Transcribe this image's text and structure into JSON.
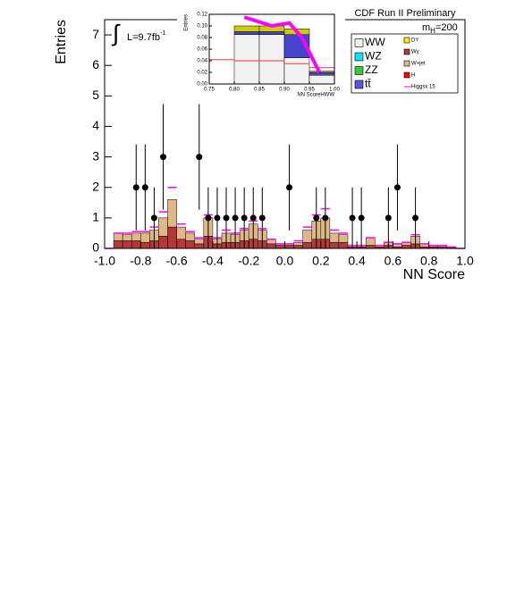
{
  "chart_data": [
    {
      "type": "stacked-histogram",
      "title": "CDF Run II Preliminary",
      "mass_label": {
        "symbol": "m",
        "subscript": "H",
        "value": "=200"
      },
      "luminosity": {
        "integral": "∫",
        "text": "L=9.7fb",
        "superscript": "-1"
      },
      "x_label": "NN Score",
      "y_label": "Entries",
      "bins": [
        -1.0,
        -0.95,
        -0.9,
        -0.85,
        -0.8,
        -0.75,
        -0.7,
        -0.65,
        -0.6,
        -0.55,
        -0.5,
        -0.45,
        -0.4,
        -0.35,
        -0.3,
        -0.25,
        -0.2,
        -0.15,
        -0.1,
        -0.05,
        0.0,
        0.05,
        0.1,
        0.15,
        0.2,
        0.25,
        0.3,
        0.35,
        0.4,
        0.45,
        0.5,
        0.55,
        0.6,
        0.65,
        0.7,
        0.75,
        0.8,
        0.85,
        0.9,
        0.95,
        1.0
      ],
      "series": [
        {
          "name": "Wγ",
          "color": "#b03a3a",
          "values": [
            0,
            0.25,
            0.25,
            0.25,
            0.2,
            0.25,
            0.4,
            0.7,
            0.3,
            0.25,
            0.15,
            0.4,
            0.15,
            0.2,
            0.2,
            0.25,
            0.3,
            0.25,
            0.15,
            0.1,
            0.1,
            0.1,
            0.2,
            0.3,
            0.3,
            0.2,
            0.2,
            0.05,
            0.05,
            0.1,
            0.05,
            0.1,
            0.05,
            0.1,
            0.15,
            0.05,
            0.05,
            0.05,
            0.03,
            0
          ]
        },
        {
          "name": "W+jet",
          "color": "#deb887",
          "values": [
            0,
            0.25,
            0.2,
            0.25,
            0.3,
            0.35,
            0.6,
            0.9,
            0.4,
            0.25,
            0.15,
            0.6,
            0.15,
            0.3,
            0.25,
            0.35,
            0.5,
            0.35,
            0.15,
            0.05,
            0.05,
            0.1,
            0.4,
            0.6,
            0.7,
            0.3,
            0.25,
            0.05,
            0.05,
            0.25,
            0.05,
            0.1,
            0.1,
            0.1,
            0.25,
            0.1,
            0.05,
            0.05,
            0.02,
            0
          ]
        }
      ],
      "signal": {
        "name": "Higgsx 15",
        "color": "#ff00ff",
        "values": [
          0,
          0.5,
          0.5,
          0.55,
          0.55,
          0.7,
          1.2,
          2.0,
          0.8,
          0.55,
          0.35,
          1.1,
          0.35,
          0.6,
          0.5,
          0.65,
          0.9,
          0.65,
          0.3,
          0.15,
          0.15,
          0.25,
          0.7,
          1.1,
          1.3,
          0.6,
          0.5,
          0.1,
          0.1,
          0.35,
          0.1,
          0.2,
          0.15,
          0.2,
          0.45,
          0.15,
          0.1,
          0.1,
          0.05,
          0
        ]
      },
      "points": {
        "x": [
          -0.825,
          -0.775,
          -0.725,
          -0.675,
          -0.475,
          -0.425,
          -0.375,
          -0.325,
          -0.275,
          -0.225,
          -0.175,
          -0.125,
          0.025,
          0.175,
          0.225,
          0.375,
          0.425,
          0.575,
          0.625,
          0.725
        ],
        "values": [
          2,
          2,
          1,
          3,
          3,
          1,
          1,
          1,
          1,
          1,
          1,
          1,
          2,
          1,
          1,
          1,
          1,
          1,
          2,
          1
        ],
        "errors": [
          1.41,
          1.41,
          1,
          1.73,
          1.73,
          1,
          1,
          1,
          1,
          1,
          1,
          1,
          1.41,
          1,
          1,
          1,
          1,
          1,
          1.41,
          1
        ]
      },
      "legend": [
        {
          "name": "WW",
          "color": "#f2f2f2"
        },
        {
          "name": "WZ",
          "color": "#00e5ee"
        },
        {
          "name": "ZZ",
          "color": "#33cc33"
        },
        {
          "name": "tt̄",
          "color": "#5555dd"
        },
        {
          "name": "DY",
          "color": "#ffee00"
        },
        {
          "name": "H",
          "color": "#ff0000"
        }
      ],
      "xlim": [
        -1.0,
        1.0
      ],
      "ylim": [
        0,
        7.5
      ],
      "xticks": [
        {
          "value": -1.0,
          "label": "-1.0"
        },
        -0.8,
        -0.6,
        -0.4,
        -0.2,
        {
          "value": 0,
          "label": "0.0"
        },
        0.2,
        0.4,
        0.6,
        0.8,
        {
          "value": 1,
          "label": "1.0"
        }
      ],
      "yticks": [
        0,
        1,
        2,
        3,
        4,
        5,
        6,
        7
      ]
    },
    {
      "type": "stacked-histogram",
      "x_label": "NN ScoreHWW",
      "y_label": "Entries",
      "bins": [
        0.75,
        0.8,
        0.85,
        0.9,
        0.95,
        1.0
      ],
      "series": [
        {
          "color": "#f2f2f2",
          "values": [
            0,
            0.085,
            0.085,
            0.045,
            0.015
          ]
        },
        {
          "color": "#4444cc",
          "values": [
            0,
            0.005,
            0.005,
            0.04,
            0.005
          ]
        },
        {
          "color": "#cccc00",
          "values": [
            0,
            0.01,
            0.01,
            0.01,
            0.002
          ]
        }
      ],
      "signal": {
        "color": "#ff3333",
        "values": [
          0.042,
          0.04,
          0.04,
          0.035,
          0.028
        ]
      },
      "trace": {
        "color": "#ff00ff",
        "x": [
          0.82,
          0.875,
          0.91,
          0.935,
          0.97
        ],
        "values": [
          0.115,
          0.1,
          0.105,
          0.08,
          0.02
        ]
      },
      "xlim": [
        0.75,
        1.0
      ],
      "ylim": [
        0,
        0.12
      ],
      "xticks": [
        0.75,
        {
          "value": 0.8,
          "label": "0.80"
        },
        0.85,
        {
          "value": 0.9,
          "label": "0.90"
        },
        0.95,
        {
          "value": 1,
          "label": "1.00"
        }
      ],
      "yticks": [
        {
          "value": 0,
          "label": "0.00"
        },
        0.02,
        0.04,
        0.06,
        0.08,
        {
          "value": 0.1,
          "label": "0.10"
        },
        0.12
      ]
    }
  ]
}
